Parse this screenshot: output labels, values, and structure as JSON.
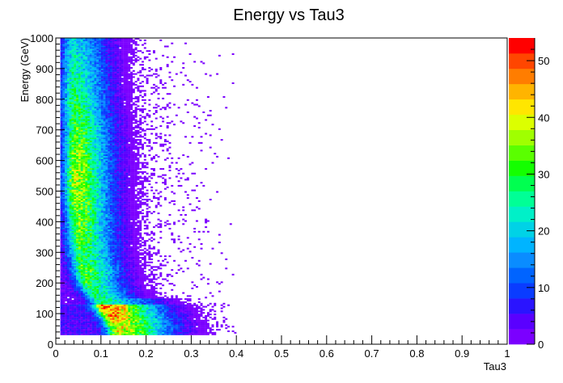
{
  "chart_data": {
    "type": "heatmap",
    "title": "Energy vs Tau3",
    "xlabel": "Tau3",
    "ylabel": "Energy (GeV)",
    "xlim": [
      0,
      1
    ],
    "ylim": [
      0,
      1000
    ],
    "x_ticks": [
      "0",
      "0.1",
      "0.2",
      "0.3",
      "0.4",
      "0.5",
      "0.6",
      "0.7",
      "0.8",
      "0.9",
      "1"
    ],
    "y_ticks": [
      "0",
      "100",
      "200",
      "300",
      "400",
      "500",
      "600",
      "700",
      "800",
      "900",
      "1000"
    ],
    "colorbar": {
      "range": [
        0,
        54
      ],
      "ticks": [
        "0",
        "10",
        "20",
        "30",
        "40",
        "50"
      ]
    },
    "x_bin_width": 0.005,
    "y_bin_width": 5,
    "populated_y_range": [
      30,
      1000
    ],
    "peak_tau3_at_energy": [
      {
        "energy": 50,
        "tau3": 0.14
      },
      {
        "energy": 100,
        "tau3": 0.12
      },
      {
        "energy": 200,
        "tau3": 0.07
      },
      {
        "energy": 300,
        "tau3": 0.055
      },
      {
        "energy": 400,
        "tau3": 0.05
      },
      {
        "energy": 500,
        "tau3": 0.045
      },
      {
        "energy": 600,
        "tau3": 0.045
      },
      {
        "energy": 700,
        "tau3": 0.045
      },
      {
        "energy": 800,
        "tau3": 0.04
      },
      {
        "energy": 900,
        "tau3": 0.04
      },
      {
        "energy": 1000,
        "tau3": 0.04
      }
    ],
    "max_bin_count": 54
  },
  "colors": {
    "palette": [
      "#7b00ff",
      "#5a00ff",
      "#2a14ff",
      "#0a3cff",
      "#0064ff",
      "#0a8cff",
      "#00b4ff",
      "#00d2e6",
      "#00f0c8",
      "#00ff96",
      "#00ff50",
      "#14ff00",
      "#5aff00",
      "#a0ff00",
      "#dcff00",
      "#ffe600",
      "#ffb400",
      "#ff7d00",
      "#ff4600",
      "#ff0000"
    ]
  }
}
